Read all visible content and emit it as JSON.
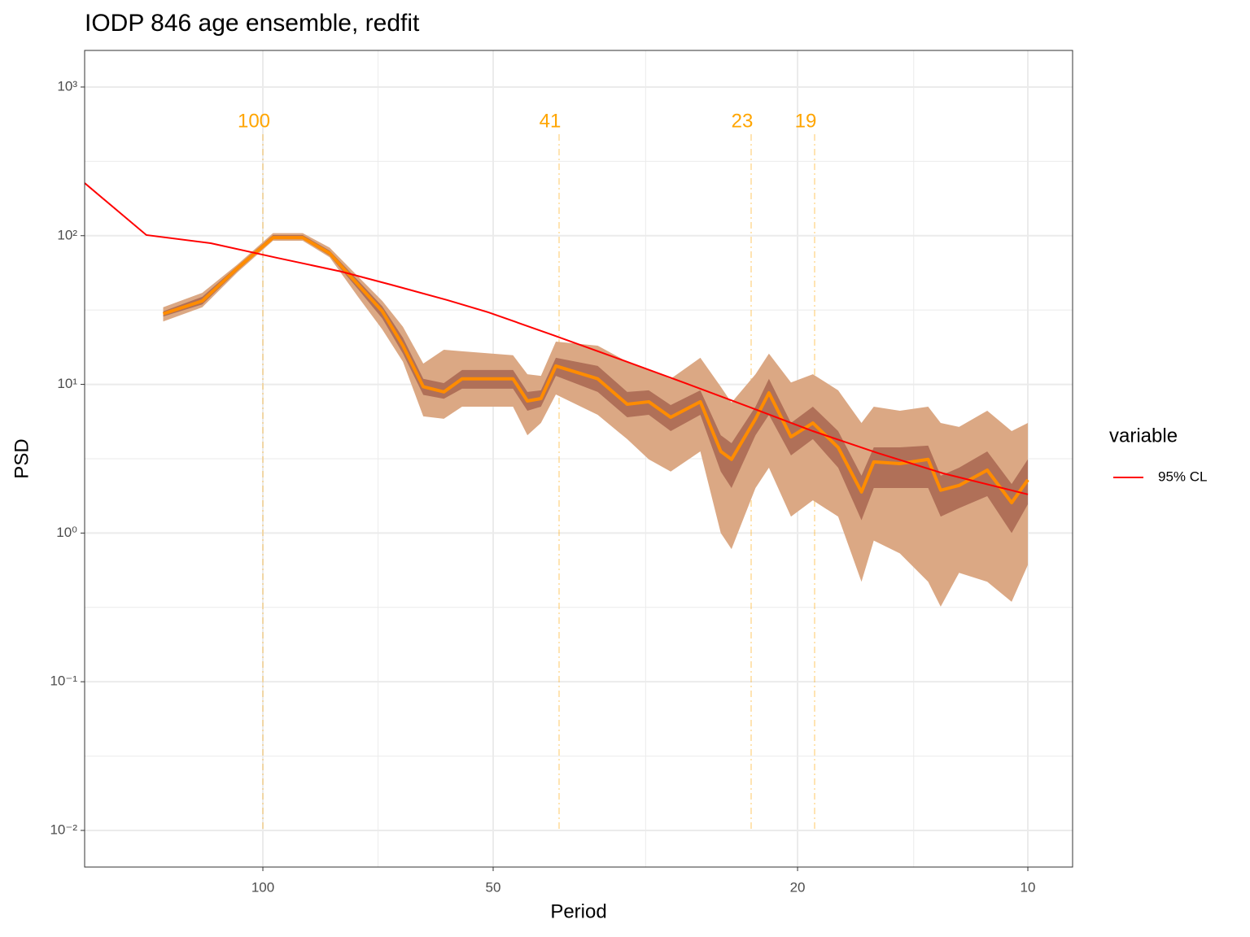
{
  "chart_data": {
    "type": "line",
    "title": "IODP 846 age ensemble, redfit",
    "x_label": "Period",
    "y_label": "PSD",
    "log_x": true,
    "log_y": true,
    "grid": true,
    "xlim": [
      171,
      8.74
    ],
    "ylim": [
      0.00567,
      1762
    ],
    "xticks": [
      100,
      50,
      20,
      10
    ],
    "x_minor_ticks": [
      70.7,
      31.6,
      14.1
    ],
    "yticks": [
      {
        "value": 0.01,
        "label": "10⁻²"
      },
      {
        "value": 0.1,
        "label": "10⁻¹"
      },
      {
        "value": 1,
        "label": "10⁰"
      },
      {
        "value": 10,
        "label": "10¹"
      },
      {
        "value": 100,
        "label": "10²"
      },
      {
        "value": 1000,
        "label": "10³"
      }
    ],
    "y_minor_ticks": [
      0.03162,
      0.3162,
      3.162,
      31.62,
      316.2
    ],
    "legend_title": "variable",
    "legend_position": "right",
    "series": [
      {
        "name": "95% CL",
        "color": "#ff0000",
        "x": [
          171,
          142,
          117,
          95.9,
          78.9,
          68.1,
          57.4,
          50.7,
          41.7,
          34.3,
          28.2,
          23.2,
          19.1,
          15.7,
          12.9,
          10
        ],
        "values": [
          226,
          101,
          89,
          71,
          57.3,
          46.9,
          36.9,
          30.5,
          21.4,
          14.9,
          10.3,
          7.08,
          4.85,
          3.45,
          2.52,
          1.82
        ]
      }
    ],
    "ensemble": {
      "x": [
        135,
        120,
        108,
        97,
        88.7,
        81.8,
        75.1,
        69.8,
        65.6,
        61.7,
        58.0,
        54.9,
        47.1,
        45.1,
        43.3,
        41.4,
        36.5,
        33.4,
        31.3,
        29.3,
        26.8,
        25.2,
        24.4,
        22.7,
        21.8,
        20.4,
        19.1,
        17.7,
        16.5,
        15.9,
        14.7,
        13.5,
        13.0,
        12.3,
        11.3,
        10.5,
        10.0
      ],
      "median": {
        "color": "#ff8c00",
        "values": [
          29.8,
          36.4,
          60.3,
          97,
          97,
          76.2,
          46.9,
          31,
          18.2,
          9.64,
          8.9,
          10.9,
          10.9,
          7.73,
          8.03,
          13.3,
          10.9,
          7.35,
          7.64,
          6.01,
          7.64,
          3.54,
          3.13,
          5.86,
          8.77,
          4.44,
          5.5,
          3.77,
          1.89,
          3.01,
          2.93,
          3.13,
          1.94,
          2.09,
          2.65,
          1.6,
          2.28
        ]
      },
      "inner_band": {
        "color": "#b07058",
        "lower": [
          28.6,
          34.5,
          58,
          94.7,
          94.7,
          73.3,
          43.7,
          27.7,
          16.1,
          8.5,
          8.0,
          9.35,
          9.35,
          6.65,
          7.08,
          11.4,
          8.9,
          6.01,
          6.24,
          4.85,
          6.24,
          2.59,
          2.01,
          4.55,
          6.24,
          3.33,
          4.28,
          2.75,
          1.22,
          2.01,
          2.01,
          2.01,
          1.29,
          1.47,
          1.77,
          1.0,
          1.56
        ],
        "upper": [
          31,
          38.8,
          62.5,
          101,
          101,
          79.4,
          50,
          33.5,
          20.6,
          10.9,
          10.2,
          12.5,
          12.5,
          8.9,
          9.12,
          15.1,
          13.3,
          8.9,
          9.12,
          7.26,
          9.12,
          4.55,
          4.02,
          7.08,
          10.9,
          5.5,
          7.08,
          4.85,
          2.43,
          3.77,
          3.77,
          3.87,
          2.43,
          2.75,
          3.54,
          2.14,
          3.13
        ]
      },
      "outer_band": {
        "color": "#dba884",
        "lower": [
          26.5,
          33,
          56.6,
          92.5,
          92.5,
          71.6,
          38.8,
          23.4,
          14.2,
          6.09,
          5.87,
          7.08,
          7.08,
          4.55,
          5.5,
          8.55,
          6.24,
          4.28,
          3.13,
          2.59,
          3.54,
          1.0,
          0.78,
          2.01,
          2.75,
          1.29,
          1.66,
          1.29,
          0.47,
          0.89,
          0.73,
          0.47,
          0.32,
          0.54,
          0.47,
          0.345,
          0.61
        ],
        "upper": [
          33,
          41.3,
          64,
          104,
          104,
          83.2,
          53.2,
          36.4,
          24.4,
          13.8,
          17.1,
          16.7,
          15.7,
          11.7,
          11.4,
          19.4,
          18.2,
          14.2,
          12.5,
          10.9,
          15.1,
          9.64,
          7.54,
          11.7,
          16.1,
          10.3,
          11.7,
          9.12,
          5.5,
          7.08,
          6.65,
          7.08,
          5.5,
          5.17,
          6.65,
          4.85,
          5.5
        ]
      }
    },
    "periods_marked": [
      100,
      41,
      23,
      19
    ],
    "periods_marked_color": "#ffa500"
  }
}
